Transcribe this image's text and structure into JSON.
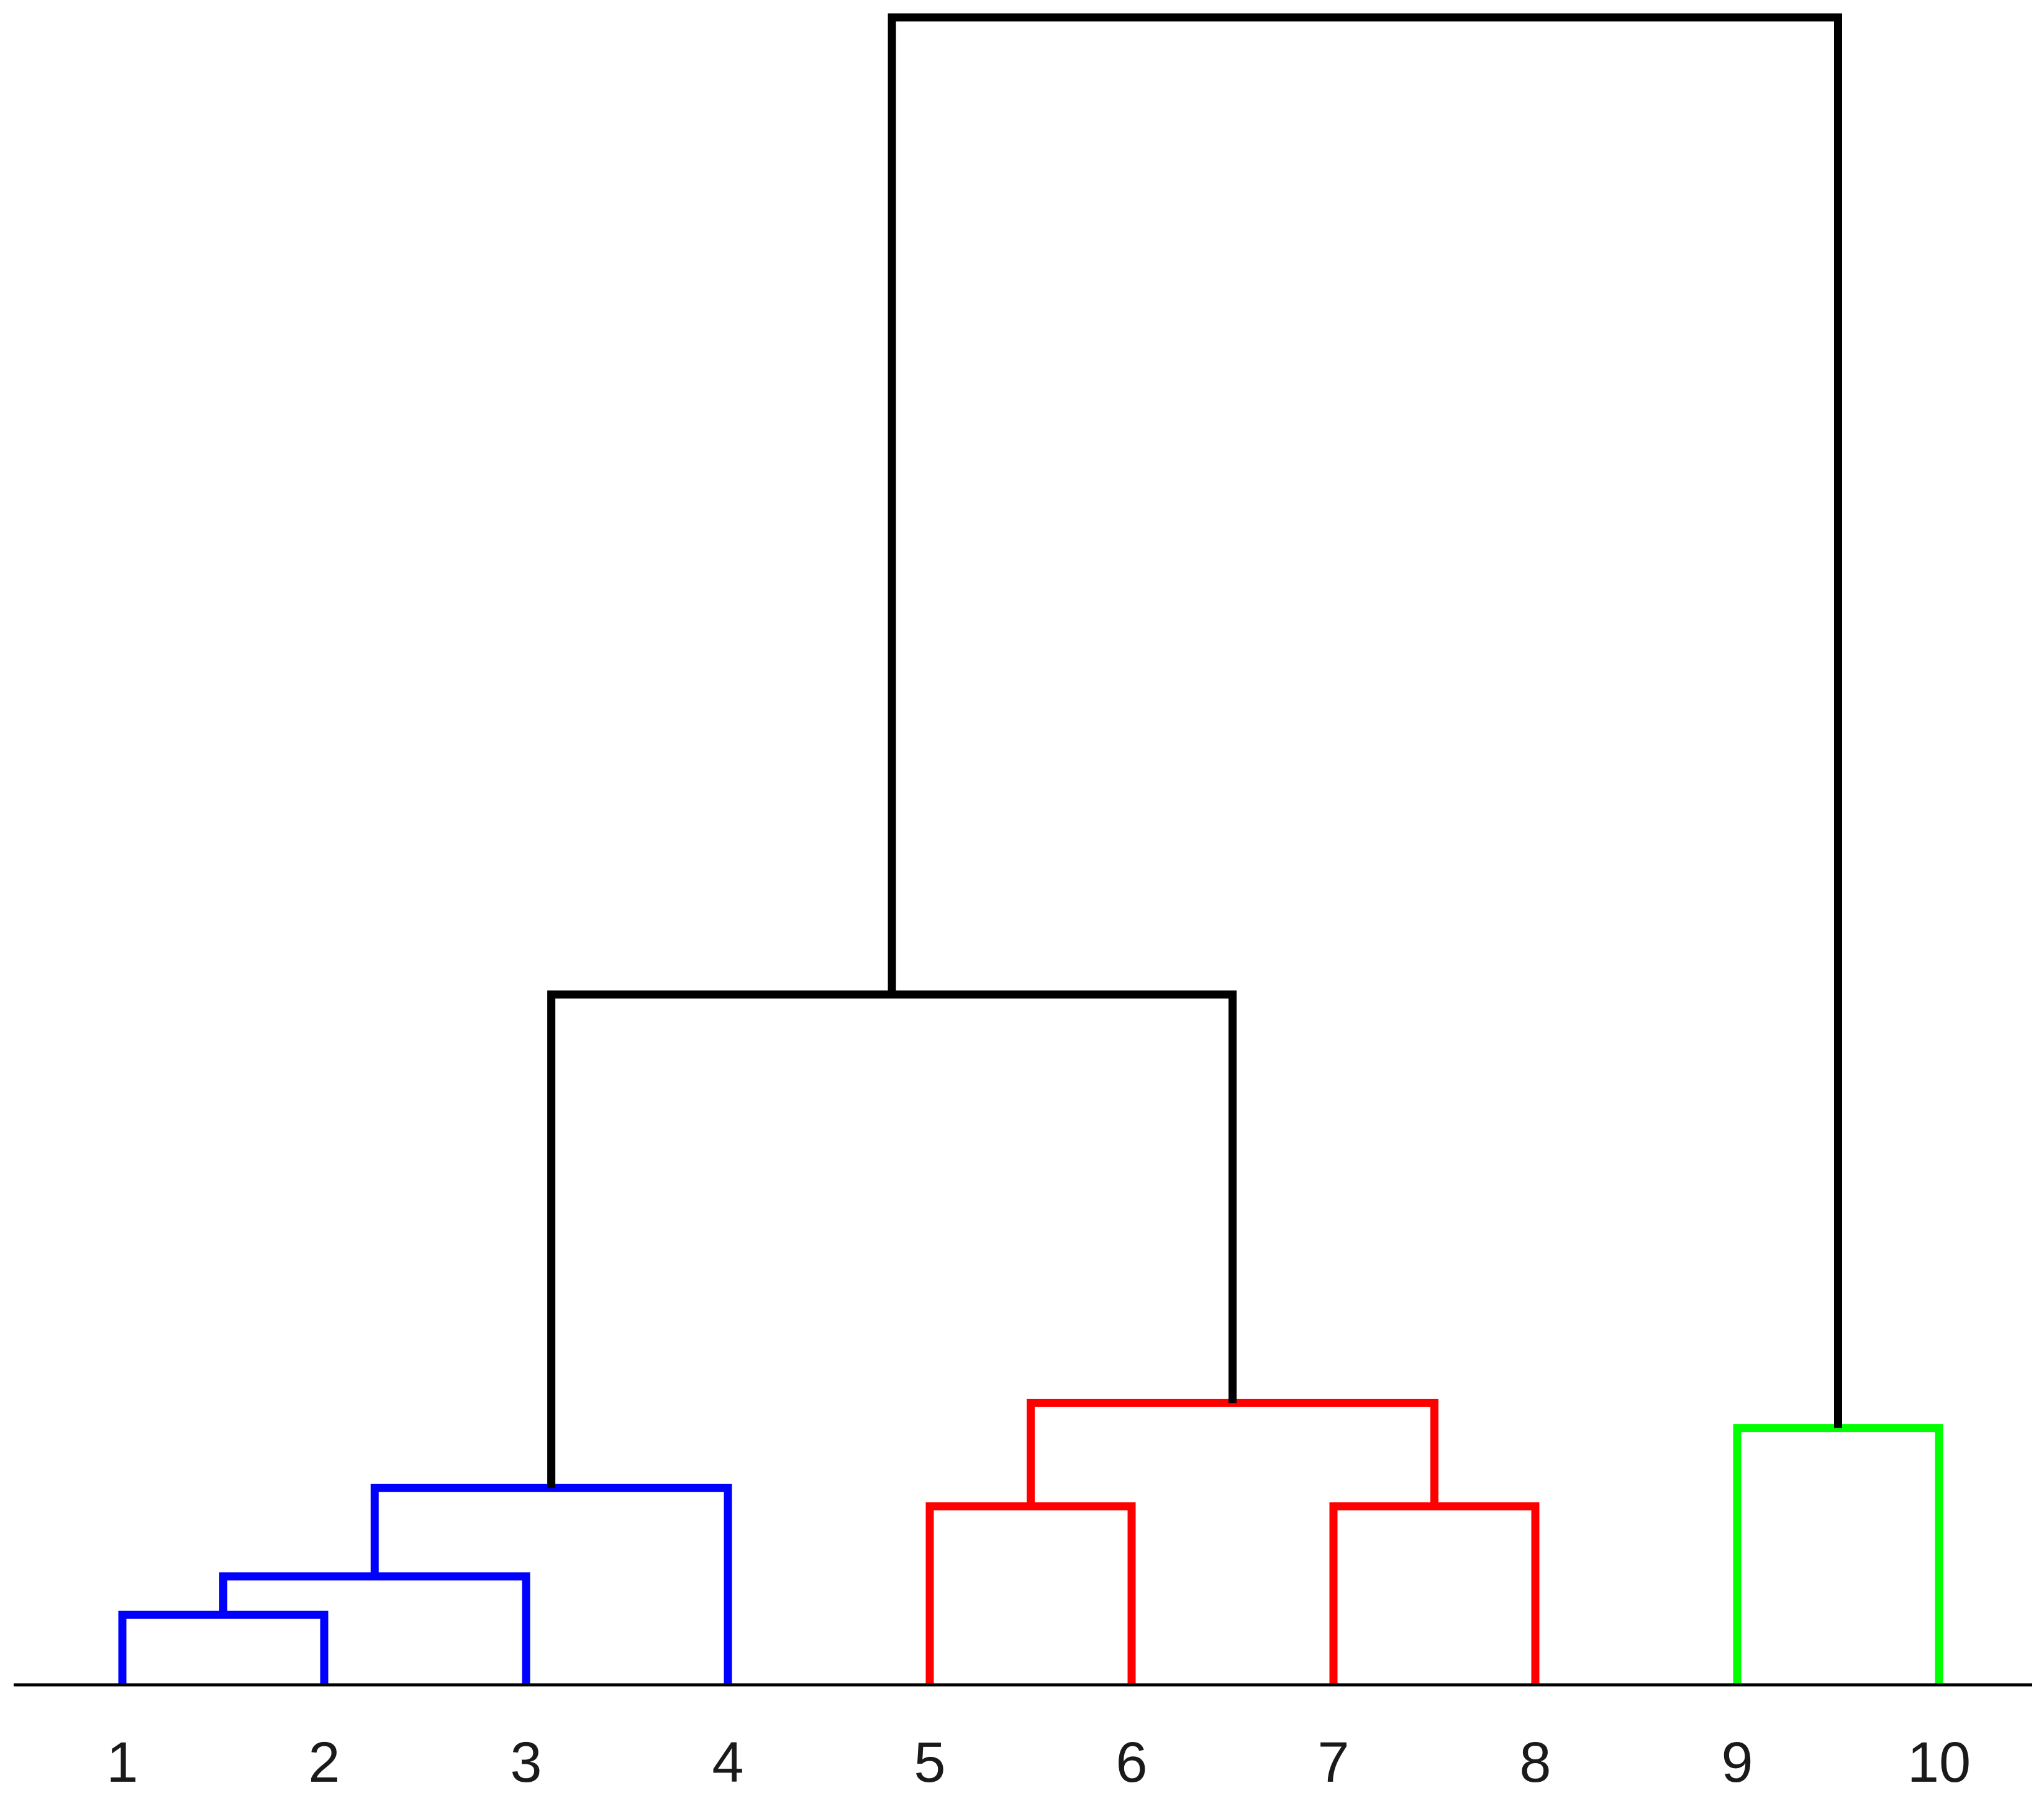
{
  "chart_data": {
    "type": "dendrogram",
    "title": "",
    "xlabel": "",
    "ylabel": "",
    "leaves": [
      "1",
      "2",
      "3",
      "4",
      "5",
      "6",
      "7",
      "8",
      "9",
      "10"
    ],
    "ylim": [
      0,
      1
    ],
    "merges": [
      {
        "left": "1",
        "right": "2",
        "height": 0.042,
        "cluster": "blue"
      },
      {
        "left": "1+2",
        "right": "3",
        "height": 0.065,
        "cluster": "blue"
      },
      {
        "left": "1+2+3",
        "right": "4",
        "height": 0.118,
        "cluster": "blue"
      },
      {
        "left": "5",
        "right": "6",
        "height": 0.107,
        "cluster": "red"
      },
      {
        "left": "7",
        "right": "8",
        "height": 0.107,
        "cluster": "red"
      },
      {
        "left": "5+6",
        "right": "7+8",
        "height": 0.169,
        "cluster": "red"
      },
      {
        "left": "9",
        "right": "10",
        "height": 0.154,
        "cluster": "green"
      },
      {
        "left": "1+2+3+4",
        "right": "5+6+7+8",
        "height": 0.414,
        "cluster": "root"
      },
      {
        "left": "1..8",
        "right": "9+10",
        "height": 1.0,
        "cluster": "root"
      }
    ],
    "cluster_colors": {
      "blue": "#0000ff",
      "red": "#ff0000",
      "green": "#00ff00",
      "root": "#000000"
    },
    "axis_color": "#000000",
    "grid": false,
    "legend": "none"
  }
}
